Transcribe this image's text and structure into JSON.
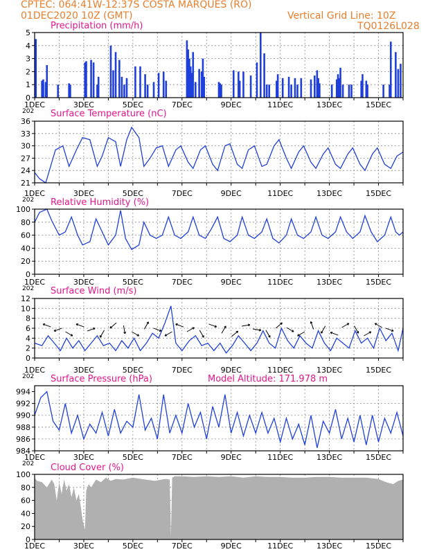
{
  "header": {
    "line1": "CPTEC:   064:41W-12:37S   COSTA MARQUES (RO)",
    "line2": "01DEC2020 10Z (GMT)",
    "grid_note": "Vertical Grid Line: 10Z",
    "code": "TQ0126L028"
  },
  "colors": {
    "header": "#e87e2c",
    "title": "#e3168a",
    "series": "#1f3fdb",
    "cloud": "#b0b0b0",
    "grid": "#888888"
  },
  "x_axis": {
    "ticks": [
      {
        "label": "1DEC",
        "day": 1
      },
      {
        "label": "3DEC",
        "day": 3
      },
      {
        "label": "5DEC",
        "day": 5
      },
      {
        "label": "7DEC",
        "day": 7
      },
      {
        "label": "9DEC",
        "day": 9
      },
      {
        "label": "11DEC",
        "day": 11
      },
      {
        "label": "13DEC",
        "day": 13
      },
      {
        "label": "15DEC",
        "day": 15
      }
    ],
    "cut_year": "202"
  },
  "chart_data": [
    {
      "type": "bar",
      "title": "Precipitation  (mm/h)",
      "ylim": [
        0,
        5
      ],
      "yticks": [
        "0",
        "1",
        "2",
        "3",
        "4",
        "5"
      ],
      "grid": true,
      "values_day": [
        1.05,
        1.3,
        1.35,
        1.35,
        1.45,
        1.5,
        1.95,
        2.4,
        2.45,
        3.05,
        3.1,
        3.3,
        3.4,
        3.55,
        3.6,
        4.1,
        4.2,
        4.3,
        4.45,
        4.55,
        4.65,
        4.75,
        5.1,
        5.3,
        5.5,
        5.6,
        5.85,
        6.05,
        6.25,
        6.35,
        7.2,
        7.25,
        7.3,
        7.35,
        7.4,
        7.45,
        7.55,
        7.7,
        7.8,
        7.85,
        7.9,
        8.5,
        8.55,
        8.6,
        9.1,
        9.3,
        9.35,
        9.5,
        9.8,
        10.05,
        10.2,
        10.35,
        10.45,
        10.55,
        10.85,
        10.9,
        11.1,
        11.35,
        11.45,
        11.6,
        11.7,
        11.85,
        12.25,
        12.4,
        12.5,
        12.55,
        12.6,
        13.1,
        13.3,
        13.35,
        13.4,
        13.45,
        13.55,
        13.8,
        13.9,
        14.3,
        14.35,
        14.5,
        14.55,
        15.2,
        15.45,
        15.5,
        15.7,
        15.8,
        15.9
      ],
      "values": [
        4.5,
        1.3,
        1.4,
        1.0,
        1.2,
        2.5,
        1.0,
        1.1,
        1.0,
        2.7,
        2.8,
        2.9,
        2.7,
        1.0,
        1.6,
        4.0,
        2.1,
        3.5,
        2.9,
        1.6,
        1.0,
        1.5,
        2.4,
        2.4,
        1.8,
        1.0,
        1.2,
        1.9,
        2.0,
        1.3,
        4.4,
        3.7,
        3.0,
        2.4,
        1.9,
        3.5,
        1.2,
        2.2,
        2.0,
        3.0,
        1.6,
        1.2,
        1.1,
        1.0,
        2.1,
        2.0,
        1.3,
        2.0,
        1.7,
        2.7,
        5.0,
        3.4,
        1.0,
        1.0,
        1.3,
        1.8,
        1.5,
        1.6,
        1.0,
        1.5,
        1.0,
        1.5,
        1.4,
        1.7,
        2.1,
        1.5,
        1.1,
        1.0,
        1.4,
        1.8,
        1.5,
        2.3,
        1.0,
        1.0,
        1.0,
        1.3,
        1.8,
        1.3,
        1.0,
        1.0,
        1.0,
        4.3,
        3.5,
        2.2,
        2.6
      ]
    },
    {
      "type": "line",
      "title": "Surface Temperature  (nC)",
      "ylim": [
        21,
        36
      ],
      "yticks": [
        "21",
        "24",
        "27",
        "30",
        "33",
        "36"
      ],
      "grid": true,
      "x": [
        1.0,
        1.2,
        1.45,
        1.6,
        1.85,
        2.15,
        2.4,
        2.7,
        2.95,
        3.25,
        3.55,
        3.75,
        4.0,
        4.3,
        4.5,
        4.75,
        4.95,
        5.25,
        5.45,
        5.7,
        5.95,
        6.2,
        6.45,
        6.75,
        6.95,
        7.25,
        7.45,
        7.75,
        7.95,
        8.25,
        8.45,
        8.75,
        8.95,
        9.25,
        9.45,
        9.7,
        9.95,
        10.25,
        10.45,
        10.75,
        10.95,
        11.25,
        11.45,
        11.75,
        11.95,
        12.25,
        12.45,
        12.75,
        12.95,
        13.25,
        13.45,
        13.75,
        13.95,
        14.25,
        14.45,
        14.75,
        14.95,
        15.25,
        15.5,
        15.75,
        16.0
      ],
      "y": [
        23.5,
        22.0,
        21.0,
        24.0,
        29.0,
        30.0,
        25.0,
        29.0,
        32.0,
        31.5,
        25.0,
        27.5,
        32.0,
        31.0,
        25.0,
        31.5,
        34.5,
        32.0,
        25.0,
        27.0,
        29.5,
        30.0,
        25.0,
        29.0,
        30.0,
        26.0,
        24.5,
        29.0,
        30.0,
        25.5,
        24.0,
        30.0,
        30.5,
        25.5,
        24.5,
        29.0,
        30.0,
        25.0,
        25.5,
        30.0,
        31.5,
        27.0,
        24.5,
        28.5,
        30.0,
        26.0,
        24.5,
        28.0,
        29.5,
        25.5,
        24.5,
        28.0,
        29.5,
        25.5,
        24.0,
        28.0,
        29.5,
        25.5,
        24.5,
        27.5,
        28.5
      ]
    },
    {
      "type": "line",
      "title": "Relative Humidity  (%)",
      "ylim": [
        0,
        100
      ],
      "yticks": [
        "0",
        "20",
        "40",
        "60",
        "80",
        "100"
      ],
      "grid": true,
      "x": [
        1.0,
        1.2,
        1.5,
        1.7,
        2.0,
        2.25,
        2.5,
        2.75,
        2.95,
        3.25,
        3.5,
        3.75,
        4.0,
        4.3,
        4.5,
        4.7,
        4.95,
        5.25,
        5.45,
        5.7,
        5.95,
        6.2,
        6.45,
        6.7,
        6.95,
        7.25,
        7.45,
        7.7,
        7.95,
        8.2,
        8.45,
        8.7,
        8.95,
        9.25,
        9.45,
        9.7,
        9.95,
        10.25,
        10.45,
        10.7,
        10.95,
        11.25,
        11.45,
        11.7,
        11.95,
        12.25,
        12.45,
        12.7,
        12.95,
        13.25,
        13.45,
        13.7,
        13.95,
        14.25,
        14.45,
        14.7,
        14.95,
        15.25,
        15.5,
        15.7,
        15.85,
        16.0
      ],
      "y": [
        80.0,
        95.0,
        100.0,
        82.0,
        60.0,
        65.0,
        88.0,
        60.0,
        45.0,
        50.0,
        85.0,
        65.0,
        45.0,
        60.0,
        98.0,
        55.0,
        38.0,
        45.0,
        80.0,
        60.0,
        55.0,
        60.0,
        88.0,
        60.0,
        55.0,
        65.0,
        88.0,
        60.0,
        55.0,
        70.0,
        88.0,
        55.0,
        50.0,
        60.0,
        88.0,
        60.0,
        55.0,
        65.0,
        85.0,
        55.0,
        48.0,
        60.0,
        85.0,
        60.0,
        55.0,
        65.0,
        88.0,
        60.0,
        55.0,
        65.0,
        88.0,
        65.0,
        55.0,
        65.0,
        90.0,
        65.0,
        50.0,
        60.0,
        88.0,
        65.0,
        60.0,
        65.0
      ]
    },
    {
      "type": "line",
      "title": "Surface Wind  (m/s)",
      "ylim": [
        0,
        12
      ],
      "yticks": [
        "0",
        "2",
        "4",
        "6",
        "8",
        "10",
        "12"
      ],
      "grid": true,
      "x": [
        1.0,
        1.3,
        1.55,
        1.8,
        2.05,
        2.3,
        2.55,
        2.8,
        3.05,
        3.3,
        3.55,
        3.8,
        4.05,
        4.3,
        4.55,
        4.8,
        5.05,
        5.3,
        5.55,
        5.8,
        6.05,
        6.3,
        6.55,
        6.75,
        7.0,
        7.3,
        7.55,
        7.8,
        8.05,
        8.3,
        8.55,
        8.8,
        9.05,
        9.3,
        9.55,
        9.8,
        10.05,
        10.3,
        10.55,
        10.8,
        11.05,
        11.3,
        11.55,
        11.8,
        12.05,
        12.3,
        12.55,
        12.8,
        13.05,
        13.3,
        13.55,
        13.8,
        14.05,
        14.3,
        14.55,
        14.8,
        15.05,
        15.3,
        15.55,
        15.8,
        16.0
      ],
      "y": [
        3.0,
        2.5,
        4.5,
        3.0,
        1.5,
        4.0,
        2.0,
        3.5,
        1.5,
        3.0,
        4.5,
        2.5,
        3.0,
        1.5,
        3.5,
        2.0,
        4.0,
        1.5,
        3.0,
        5.0,
        4.0,
        7.0,
        10.5,
        3.0,
        1.5,
        3.5,
        4.5,
        2.5,
        3.0,
        1.5,
        3.0,
        1.0,
        2.5,
        4.5,
        3.0,
        1.5,
        3.0,
        5.5,
        3.0,
        2.0,
        6.0,
        3.5,
        2.0,
        4.5,
        3.0,
        2.0,
        5.5,
        3.0,
        1.5,
        4.0,
        3.0,
        2.0,
        5.5,
        3.0,
        4.0,
        2.0,
        6.0,
        3.5,
        5.0,
        1.5,
        6.0
      ]
    },
    {
      "type": "line",
      "title": "Surface Pressure (hPa)",
      "subtitle": "Model Altitude: 171.978  m",
      "ylim": [
        984,
        995
      ],
      "yticks": [
        "984",
        "986",
        "988",
        "990",
        "992",
        "994"
      ],
      "grid": true,
      "x": [
        1.0,
        1.25,
        1.5,
        1.75,
        2.0,
        2.25,
        2.5,
        2.75,
        3.0,
        3.25,
        3.5,
        3.75,
        4.0,
        4.25,
        4.5,
        4.75,
        5.0,
        5.25,
        5.5,
        5.75,
        6.0,
        6.25,
        6.5,
        6.75,
        7.0,
        7.25,
        7.5,
        7.75,
        8.0,
        8.25,
        8.5,
        8.75,
        9.0,
        9.25,
        9.5,
        9.75,
        10.0,
        10.25,
        10.5,
        10.75,
        11.0,
        11.25,
        11.5,
        11.75,
        12.0,
        12.25,
        12.5,
        12.75,
        13.0,
        13.25,
        13.5,
        13.75,
        14.0,
        14.25,
        14.5,
        14.75,
        15.0,
        15.25,
        15.5,
        15.75,
        16.0
      ],
      "y": [
        990.0,
        993.0,
        994.0,
        989.0,
        987.5,
        992.0,
        987.0,
        990.0,
        986.0,
        988.5,
        987.0,
        990.5,
        986.5,
        991.0,
        987.0,
        989.0,
        988.0,
        993.5,
        987.5,
        989.5,
        986.0,
        993.5,
        987.0,
        990.0,
        987.0,
        992.0,
        988.0,
        990.5,
        986.0,
        991.5,
        988.0,
        993.5,
        987.0,
        990.5,
        986.5,
        990.0,
        987.0,
        990.5,
        987.0,
        989.5,
        985.5,
        989.5,
        986.0,
        988.5,
        985.0,
        990.0,
        984.5,
        989.0,
        987.0,
        991.0,
        986.0,
        989.5,
        985.5,
        990.0,
        985.0,
        990.0,
        985.5,
        989.5,
        987.0,
        990.5,
        986.5
      ]
    },
    {
      "type": "area",
      "title": "Cloud Cover (%)",
      "ylim": [
        0,
        100
      ],
      "yticks": [
        "0",
        "20",
        "40",
        "60",
        "80",
        "100"
      ],
      "grid": true,
      "x": [
        1.0,
        1.1,
        1.3,
        1.5,
        1.7,
        1.8,
        1.9,
        2.0,
        2.1,
        2.2,
        2.3,
        2.4,
        2.5,
        2.6,
        2.7,
        2.8,
        2.9,
        2.95,
        3.05,
        3.1,
        3.2,
        3.3,
        3.5,
        3.7,
        3.9,
        4.1,
        4.3,
        4.6,
        5.0,
        5.5,
        5.9,
        6.3,
        6.5,
        6.55,
        6.6,
        6.7,
        7.0,
        7.5,
        8.0,
        8.5,
        9.0,
        9.5,
        10.0,
        10.5,
        11.0,
        11.5,
        12.0,
        12.5,
        13.0,
        13.5,
        14.0,
        14.5,
        15.0,
        15.3,
        15.6,
        15.8,
        16.0
      ],
      "y": [
        95.0,
        90.0,
        88.0,
        80.0,
        92.0,
        85.0,
        60.0,
        88.0,
        70.0,
        92.0,
        75.0,
        85.0,
        65.0,
        80.0,
        60.0,
        70.0,
        45.0,
        30.0,
        15.0,
        75.0,
        85.0,
        80.0,
        92.0,
        88.0,
        95.0,
        90.0,
        93.0,
        92.0,
        95.0,
        92.0,
        90.0,
        93.0,
        92.0,
        5.0,
        95.0,
        97.0,
        97.0,
        96.0,
        97.0,
        96.0,
        97.0,
        95.0,
        97.0,
        96.0,
        96.0,
        95.0,
        95.0,
        96.0,
        96.0,
        95.0,
        95.0,
        95.0,
        93.0,
        88.0,
        85.0,
        90.0,
        92.0
      ]
    }
  ]
}
